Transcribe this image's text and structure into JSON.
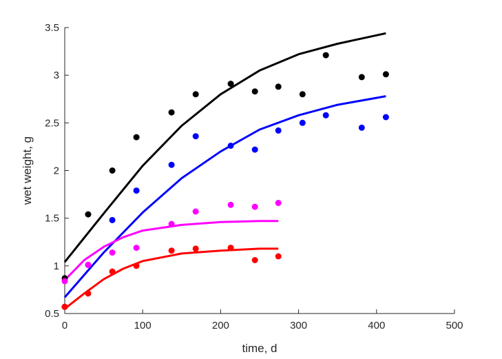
{
  "chart_data": {
    "type": "scatter",
    "title": "",
    "xlabel": "time, d",
    "ylabel": "wet weight, g",
    "xlim": [
      0,
      500
    ],
    "ylim": [
      0.5,
      3.5
    ],
    "xticks": [
      0,
      100,
      200,
      300,
      400,
      500
    ],
    "yticks": [
      0.5,
      1,
      1.5,
      2,
      2.5,
      3,
      3.5
    ],
    "xtick_labels": [
      "0",
      "100",
      "200",
      "300",
      "400",
      "500"
    ],
    "ytick_labels": [
      "0.5",
      "1",
      "1.5",
      "2",
      "2.5",
      "3",
      "3.5"
    ],
    "grid": false,
    "legend": "none",
    "series": [
      {
        "color": "#000000",
        "points": {
          "x": [
            0,
            30,
            61,
            92,
            137,
            168,
            213,
            244,
            274,
            305,
            335,
            381,
            412
          ],
          "y": [
            0.87,
            1.54,
            2.0,
            2.35,
            2.61,
            2.8,
            2.91,
            2.83,
            2.88,
            2.8,
            3.21,
            2.98,
            3.01
          ]
        },
        "fit": {
          "x": [
            0,
            50,
            100,
            150,
            200,
            250,
            300,
            350,
            412
          ],
          "y": [
            1.04,
            1.55,
            2.05,
            2.47,
            2.8,
            3.05,
            3.22,
            3.33,
            3.44
          ]
        }
      },
      {
        "color": "#0000ff",
        "points": {
          "x": [
            0,
            30,
            61,
            92,
            137,
            168,
            213,
            244,
            274,
            305,
            335,
            381,
            412
          ],
          "y": [
            0.57,
            1.01,
            1.48,
            1.79,
            2.06,
            2.36,
            2.26,
            2.22,
            2.42,
            2.5,
            2.58,
            2.45,
            2.56
          ]
        },
        "fit": {
          "x": [
            0,
            50,
            100,
            150,
            200,
            250,
            300,
            350,
            412
          ],
          "y": [
            0.67,
            1.14,
            1.56,
            1.92,
            2.2,
            2.43,
            2.58,
            2.69,
            2.78
          ]
        }
      },
      {
        "color": "#ff00ff",
        "points": {
          "x": [
            0,
            30,
            61,
            92,
            137,
            168,
            213,
            244,
            274
          ],
          "y": [
            0.84,
            1.01,
            1.14,
            1.19,
            1.44,
            1.57,
            1.64,
            1.62,
            1.66
          ]
        },
        "fit": {
          "x": [
            0,
            25,
            50,
            75,
            100,
            150,
            200,
            250,
            274
          ],
          "y": [
            0.85,
            1.06,
            1.2,
            1.3,
            1.37,
            1.43,
            1.46,
            1.47,
            1.47
          ]
        }
      },
      {
        "color": "#ff0000",
        "points": {
          "x": [
            0,
            30,
            61,
            92,
            137,
            168,
            213,
            244,
            274
          ],
          "y": [
            0.57,
            0.71,
            0.94,
            1.0,
            1.16,
            1.18,
            1.19,
            1.06,
            1.1
          ]
        },
        "fit": {
          "x": [
            0,
            25,
            50,
            75,
            100,
            150,
            200,
            250,
            274
          ],
          "y": [
            0.55,
            0.71,
            0.86,
            0.97,
            1.05,
            1.13,
            1.16,
            1.18,
            1.18
          ]
        }
      }
    ]
  }
}
